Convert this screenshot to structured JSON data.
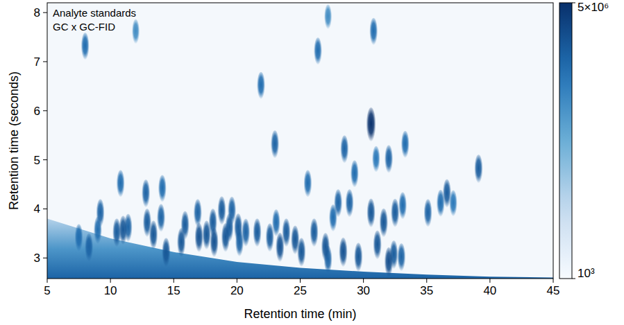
{
  "chart_data": {
    "type": "heatmap",
    "title": "Analyte standards",
    "subtitle": "GC x GC-FID",
    "x_label": "Retention time (min)",
    "y_label": "Retention time (seconds)",
    "xlim": [
      5,
      45
    ],
    "xticks": [
      5,
      10,
      15,
      20,
      25,
      30,
      35,
      40,
      45
    ],
    "ylim": [
      2.58,
      8.2
    ],
    "yticks": [
      3,
      4,
      5,
      6,
      7,
      8
    ],
    "color_range": [
      1000,
      5000000
    ],
    "color_ticks": [
      {
        "value": 1000,
        "label": "10³"
      },
      {
        "value": 5000000,
        "label": "5×10⁶"
      }
    ],
    "peaks": {
      "x": [
        8.0,
        12.0,
        7.5,
        8.3,
        9.2,
        9.0,
        10.5,
        11.0,
        11.4,
        10.8,
        12.8,
        12.9,
        13.4,
        14.1,
        14.0,
        14.4,
        15.6,
        15.9,
        16.9,
        17.0,
        17.6,
        18.1,
        18.2,
        18.8,
        19.1,
        19.4,
        19.6,
        20.1,
        20.2,
        20.7,
        21.6,
        22.6,
        23.1,
        23.4,
        23.9,
        24.6,
        25.1,
        26.1,
        25.6,
        27.0,
        27.2,
        27.6,
        28.0,
        28.4,
        28.9,
        29.6,
        30.6,
        31.1,
        31.6,
        32.0,
        32.5,
        32.4,
        33.0,
        33.1,
        35.1,
        36.1,
        36.6,
        37.1,
        39.1,
        21.9,
        23.0,
        26.4,
        28.5,
        29.3,
        30.6,
        31.0,
        30.8,
        32.0,
        33.3,
        27.2
      ],
      "y": [
        7.3,
        7.6,
        3.4,
        3.2,
        3.9,
        3.55,
        3.5,
        3.55,
        3.6,
        4.5,
        4.3,
        3.7,
        3.45,
        4.4,
        3.8,
        3.1,
        3.3,
        3.65,
        3.9,
        3.4,
        3.45,
        3.7,
        3.3,
        3.95,
        3.4,
        3.6,
        3.95,
        3.6,
        3.3,
        3.5,
        3.5,
        3.4,
        3.7,
        3.2,
        3.5,
        3.35,
        3.1,
        3.5,
        4.5,
        3.2,
        2.95,
        3.8,
        4.1,
        3.1,
        4.1,
        3.0,
        3.9,
        3.25,
        3.7,
        2.9,
        3.9,
        3.05,
        3.0,
        4.05,
        3.9,
        4.1,
        4.3,
        4.1,
        4.8,
        6.5,
        5.3,
        7.2,
        5.2,
        4.7,
        5.7,
        5.0,
        7.6,
        5.0,
        5.3,
        7.9
      ],
      "values": [
        300000,
        100000,
        300000,
        400000,
        400000,
        300000,
        500000,
        600000,
        400000,
        300000,
        400000,
        500000,
        600000,
        300000,
        400000,
        600000,
        600000,
        500000,
        400000,
        700000,
        600000,
        500000,
        700000,
        500000,
        600000,
        500000,
        400000,
        500000,
        400000,
        400000,
        500000,
        500000,
        300000,
        700000,
        500000,
        600000,
        600000,
        500000,
        300000,
        600000,
        400000,
        300000,
        400000,
        700000,
        400000,
        600000,
        600000,
        600000,
        600000,
        800000,
        500000,
        500000,
        400000,
        300000,
        400000,
        300000,
        500000,
        200000,
        500000,
        300000,
        400000,
        300000,
        400000,
        300000,
        5000000,
        200000,
        300000,
        400000,
        300000,
        100000
      ]
    },
    "bleed": {
      "x": [
        5,
        10,
        15,
        20,
        25,
        30,
        35,
        40,
        45
      ],
      "y": [
        3.8,
        3.4,
        3.12,
        2.92,
        2.8,
        2.72,
        2.66,
        2.62,
        2.6
      ]
    }
  }
}
